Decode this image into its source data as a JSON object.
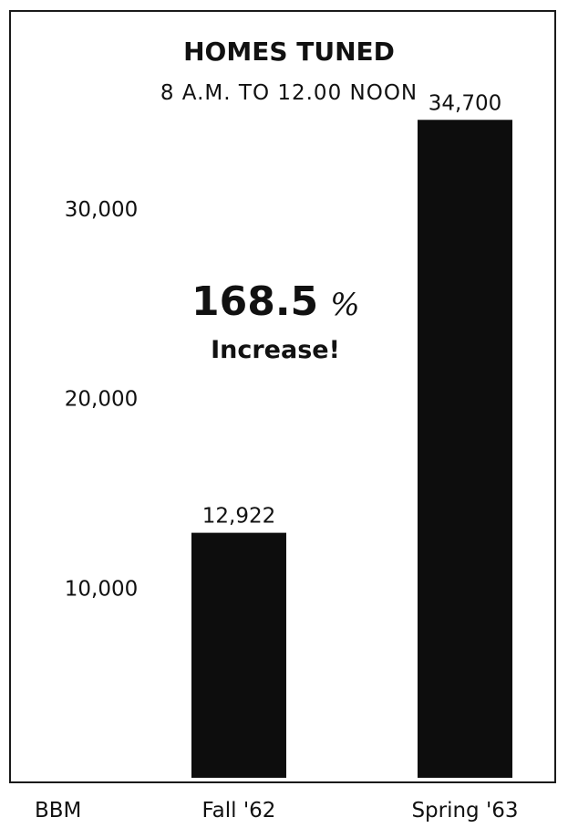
{
  "chart_data": {
    "type": "bar",
    "title": "HOMES TUNED",
    "subtitle": "8 A.M. TO 12.00 NOON",
    "categories": [
      "Fall '62",
      "Spring '63"
    ],
    "values": [
      12922,
      34700
    ],
    "value_labels": [
      "12,922",
      "34,700"
    ],
    "yticks": [
      10000,
      20000,
      30000
    ],
    "ytick_labels": [
      "10,000",
      "20,000",
      "30,000"
    ],
    "ylim": [
      0,
      38000
    ],
    "xlabel": "",
    "ylabel": "",
    "grid": false,
    "annotation": {
      "value": "168.5",
      "symbol": "%",
      "text": "Increase!"
    },
    "source": "BBM",
    "bar_color": "#0d0d0d"
  }
}
